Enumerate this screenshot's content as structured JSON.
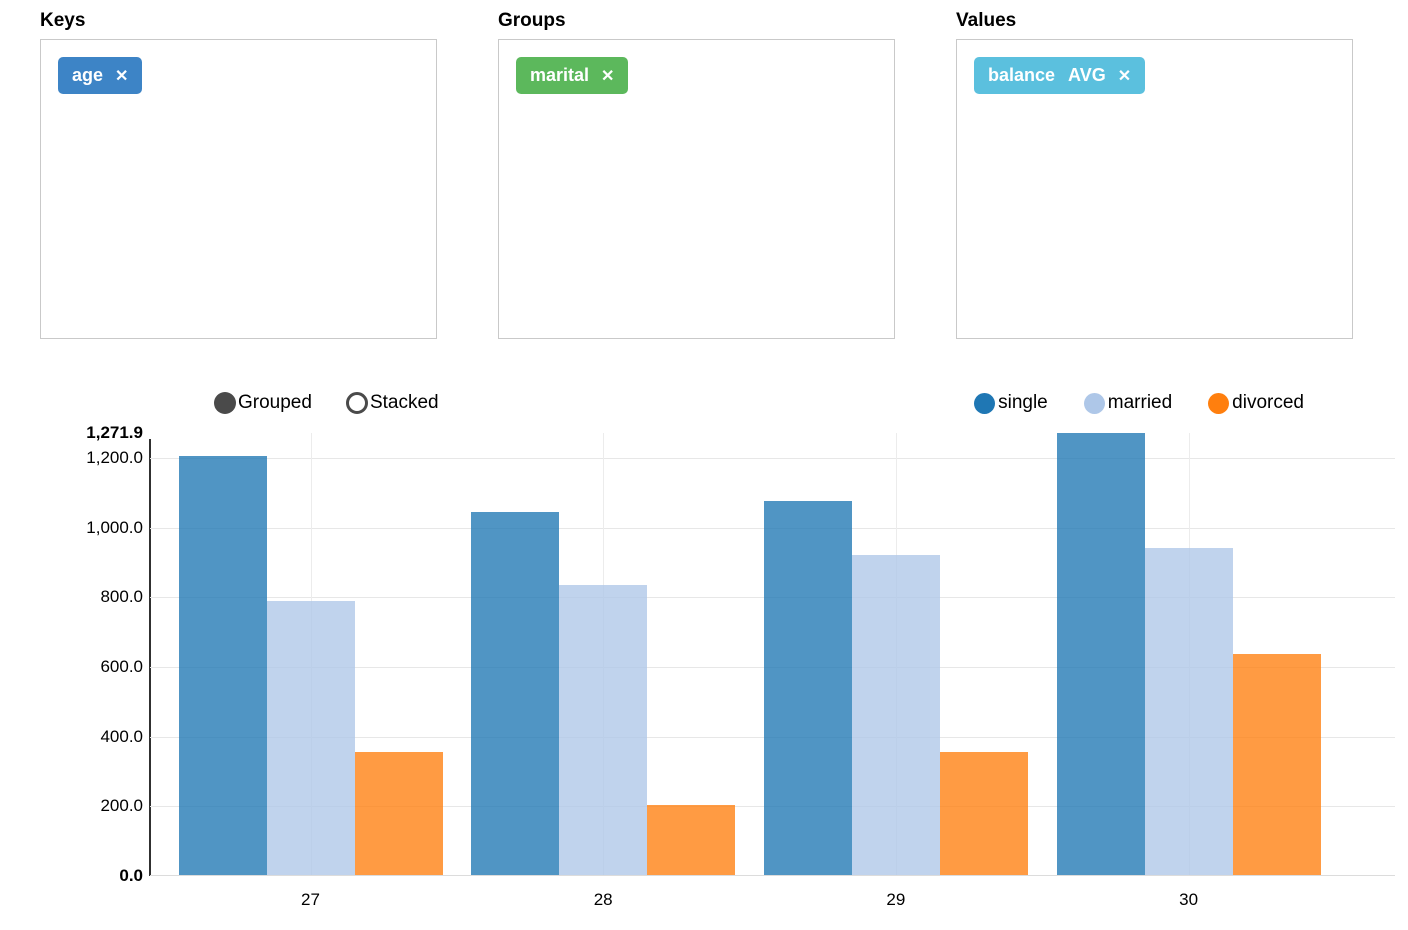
{
  "panels": [
    {
      "title": "Keys",
      "tag": {
        "field": "age",
        "agg": "",
        "color": "#3d84c6",
        "remove_icon": "✕"
      }
    },
    {
      "title": "Groups",
      "tag": {
        "field": "marital",
        "agg": "",
        "color": "#5cb85c",
        "remove_icon": "✕"
      }
    },
    {
      "title": "Values",
      "tag": {
        "field": "balance",
        "agg": "AVG",
        "color": "#5bc0de",
        "remove_icon": "✕"
      }
    }
  ],
  "controls": {
    "options": [
      {
        "label": "Grouped",
        "selected": true
      },
      {
        "label": "Stacked",
        "selected": false
      }
    ]
  },
  "chart_data": {
    "type": "bar",
    "mode": "grouped",
    "title": "",
    "xlabel": "",
    "ylabel": "",
    "categories": [
      "27",
      "28",
      "29",
      "30"
    ],
    "series": [
      {
        "name": "single",
        "color": "#1f77b4",
        "values": [
          1205.0,
          1045.0,
          1077.0,
          1271.9
        ]
      },
      {
        "name": "married",
        "color": "#aec7e8",
        "values": [
          790.0,
          835.0,
          922.0,
          941.0
        ]
      },
      {
        "name": "divorced",
        "color": "#ff7f0e",
        "values": [
          355.0,
          203.0,
          356.0,
          638.0
        ]
      }
    ],
    "ylim": [
      0,
      1271.9
    ],
    "yticks": [
      {
        "value": 0,
        "label": "0.0",
        "bold": true
      },
      {
        "value": 200,
        "label": "200.0",
        "bold": false
      },
      {
        "value": 400,
        "label": "400.0",
        "bold": false
      },
      {
        "value": 600,
        "label": "600.0",
        "bold": false
      },
      {
        "value": 800,
        "label": "800.0",
        "bold": false
      },
      {
        "value": 1000,
        "label": "1,000.0",
        "bold": false
      },
      {
        "value": 1200,
        "label": "1,200.0",
        "bold": false
      },
      {
        "value": 1271.9,
        "label": "1,271.9",
        "bold": true
      }
    ],
    "grid": true,
    "legend_position": "top-right"
  }
}
